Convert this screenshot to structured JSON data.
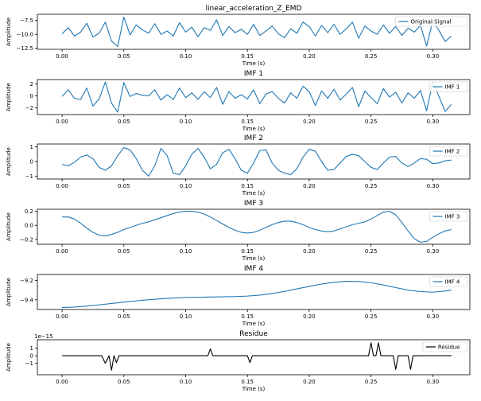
{
  "chart_data": [
    {
      "type": "line",
      "title": "linear_acceleration_Z_EMD",
      "xlabel": "Time (s)",
      "ylabel": "Amplitude",
      "legend": "Original Signal",
      "legend_position": "top-right",
      "color": "#1f77b4",
      "xlim": [
        -0.02,
        0.33
      ],
      "ylim": [
        -12.7,
        -6.4
      ],
      "yticks": [
        -12.5,
        -10.0,
        -7.5
      ],
      "ytick_labels": [
        "−12.5",
        "−10.0",
        "−7.5"
      ],
      "xticks": [
        0.0,
        0.05,
        0.1,
        0.15,
        0.2,
        0.25,
        0.3
      ],
      "xtick_labels": [
        "0.00",
        "0.05",
        "0.10",
        "0.15",
        "0.20",
        "0.25",
        "0.30"
      ],
      "x": [
        0.0,
        0.005,
        0.01,
        0.015,
        0.02,
        0.025,
        0.03,
        0.035,
        0.04,
        0.045,
        0.05,
        0.055,
        0.06,
        0.065,
        0.07,
        0.075,
        0.08,
        0.085,
        0.09,
        0.095,
        0.1,
        0.105,
        0.11,
        0.115,
        0.12,
        0.125,
        0.13,
        0.135,
        0.14,
        0.145,
        0.15,
        0.155,
        0.16,
        0.165,
        0.17,
        0.175,
        0.18,
        0.185,
        0.19,
        0.195,
        0.2,
        0.205,
        0.21,
        0.215,
        0.22,
        0.225,
        0.23,
        0.235,
        0.24,
        0.245,
        0.25,
        0.255,
        0.26,
        0.265,
        0.27,
        0.275,
        0.28,
        0.285,
        0.29,
        0.295,
        0.3,
        0.305,
        0.31,
        0.315
      ],
      "y": [
        -9.9,
        -8.8,
        -10.3,
        -9.6,
        -8.0,
        -10.5,
        -9.8,
        -7.8,
        -11.2,
        -12.2,
        -6.9,
        -10.1,
        -8.3,
        -9.2,
        -9.8,
        -8.1,
        -10.0,
        -9.4,
        -10.3,
        -7.9,
        -9.6,
        -8.7,
        -10.4,
        -8.8,
        -9.3,
        -7.4,
        -10.2,
        -8.6,
        -9.7,
        -9.1,
        -10.0,
        -8.2,
        -10.2,
        -9.4,
        -8.5,
        -9.9,
        -10.6,
        -9.0,
        -9.8,
        -7.8,
        -8.6,
        -10.3,
        -8.4,
        -9.7,
        -8.2,
        -10.0,
        -9.0,
        -7.8,
        -10.7,
        -8.5,
        -9.4,
        -10.0,
        -8.3,
        -9.8,
        -8.6,
        -10.2,
        -8.9,
        -9.6,
        -8.4,
        -12.1,
        -7.6,
        -9.3,
        -11.3,
        -10.3
      ]
    },
    {
      "type": "line",
      "title": "IMF 1",
      "xlabel": "Time (s)",
      "ylabel": "Amplitude",
      "legend": "IMF 1",
      "legend_position": "top-right",
      "color": "#1f77b4",
      "xlim": [
        -0.02,
        0.33
      ],
      "ylim": [
        -3.1,
        2.7
      ],
      "yticks": [
        -2,
        0,
        2
      ],
      "ytick_labels": [
        "−2",
        "0",
        "2"
      ],
      "xticks": [
        0.0,
        0.05,
        0.1,
        0.15,
        0.2,
        0.25,
        0.3
      ],
      "xtick_labels": [
        "0.00",
        "0.05",
        "0.10",
        "0.15",
        "0.20",
        "0.25",
        "0.30"
      ],
      "x": [
        0.0,
        0.005,
        0.01,
        0.015,
        0.02,
        0.025,
        0.03,
        0.035,
        0.04,
        0.045,
        0.05,
        0.055,
        0.06,
        0.065,
        0.07,
        0.075,
        0.08,
        0.085,
        0.09,
        0.095,
        0.1,
        0.105,
        0.11,
        0.115,
        0.12,
        0.125,
        0.13,
        0.135,
        0.14,
        0.145,
        0.15,
        0.155,
        0.16,
        0.165,
        0.17,
        0.175,
        0.18,
        0.185,
        0.19,
        0.195,
        0.2,
        0.205,
        0.21,
        0.215,
        0.22,
        0.225,
        0.23,
        0.235,
        0.24,
        0.245,
        0.25,
        0.255,
        0.26,
        0.265,
        0.27,
        0.275,
        0.28,
        0.285,
        0.29,
        0.295,
        0.3,
        0.305,
        0.31,
        0.315
      ],
      "y": [
        -0.1,
        1.0,
        -0.4,
        -0.6,
        1.3,
        -1.7,
        -0.5,
        2.3,
        -1.2,
        -2.7,
        2.2,
        -0.1,
        0.4,
        0.1,
        0.0,
        1.0,
        -0.7,
        0.2,
        -0.6,
        1.3,
        -0.3,
        0.5,
        -0.6,
        0.7,
        -0.3,
        1.4,
        -1.4,
        0.7,
        -0.4,
        0.2,
        -0.5,
        1.0,
        -1.3,
        0.3,
        0.7,
        -0.4,
        -1.2,
        0.5,
        -0.4,
        1.6,
        0.7,
        -1.6,
        0.8,
        -0.4,
        1.1,
        -0.7,
        0.3,
        1.4,
        -1.8,
        0.8,
        -0.3,
        -1.3,
        1.2,
        -0.2,
        0.6,
        -1.2,
        0.5,
        -0.4,
        0.9,
        -2.5,
        2.3,
        -0.1,
        -2.6,
        -1.4
      ]
    },
    {
      "type": "line",
      "title": "IMF 2",
      "xlabel": "Time (s)",
      "ylabel": "Amplitude",
      "legend": "IMF 2",
      "legend_position": "top-right",
      "color": "#1f77b4",
      "xlim": [
        -0.02,
        0.33
      ],
      "ylim": [
        -1.2,
        1.2
      ],
      "yticks": [
        -1,
        0,
        1
      ],
      "ytick_labels": [
        "−1",
        "0",
        "1"
      ],
      "xticks": [
        0.0,
        0.05,
        0.1,
        0.15,
        0.2,
        0.25,
        0.3
      ],
      "xtick_labels": [
        "0.00",
        "0.05",
        "0.10",
        "0.15",
        "0.20",
        "0.25",
        "0.30"
      ],
      "x": [
        0.0,
        0.005,
        0.01,
        0.015,
        0.02,
        0.025,
        0.03,
        0.035,
        0.04,
        0.045,
        0.05,
        0.055,
        0.06,
        0.065,
        0.07,
        0.075,
        0.08,
        0.085,
        0.09,
        0.095,
        0.1,
        0.105,
        0.11,
        0.115,
        0.12,
        0.125,
        0.13,
        0.135,
        0.14,
        0.145,
        0.15,
        0.155,
        0.16,
        0.165,
        0.17,
        0.175,
        0.18,
        0.185,
        0.19,
        0.195,
        0.2,
        0.205,
        0.21,
        0.215,
        0.22,
        0.225,
        0.23,
        0.235,
        0.24,
        0.245,
        0.25,
        0.255,
        0.26,
        0.265,
        0.27,
        0.275,
        0.28,
        0.285,
        0.29,
        0.295,
        0.3,
        0.305,
        0.31,
        0.315
      ],
      "y": [
        -0.2,
        -0.3,
        -0.05,
        0.3,
        0.45,
        0.2,
        -0.4,
        -0.6,
        -0.3,
        0.4,
        0.95,
        0.8,
        0.2,
        -0.6,
        -1.0,
        -0.3,
        0.9,
        0.4,
        -0.8,
        -0.9,
        -0.3,
        0.5,
        0.9,
        0.3,
        -0.5,
        -0.2,
        0.6,
        0.85,
        0.2,
        -0.6,
        -0.8,
        -0.1,
        0.75,
        0.8,
        -0.1,
        -0.6,
        -0.8,
        -0.9,
        -0.5,
        0.3,
        0.85,
        0.7,
        0.0,
        -0.6,
        -0.55,
        -0.1,
        0.35,
        0.5,
        0.4,
        0.0,
        -0.4,
        -0.55,
        -0.1,
        0.3,
        0.35,
        -0.1,
        -0.35,
        -0.1,
        0.2,
        0.15,
        -0.15,
        -0.1,
        0.05,
        0.1
      ]
    },
    {
      "type": "line",
      "title": "IMF 3",
      "xlabel": "Time (s)",
      "ylabel": "Amplitude",
      "legend": "IMF 3",
      "legend_position": "top-right",
      "color": "#1f77b4",
      "xlim": [
        -0.02,
        0.33
      ],
      "ylim": [
        -0.27,
        0.23
      ],
      "yticks": [
        -0.2,
        0.0,
        0.2
      ],
      "ytick_labels": [
        "−0.2",
        "0.0",
        "0.2"
      ],
      "xticks": [
        0.0,
        0.05,
        0.1,
        0.15,
        0.2,
        0.25,
        0.3
      ],
      "xtick_labels": [
        "0.00",
        "0.05",
        "0.10",
        "0.15",
        "0.20",
        "0.25",
        "0.30"
      ],
      "x": [
        0.0,
        0.005,
        0.01,
        0.015,
        0.02,
        0.025,
        0.03,
        0.035,
        0.04,
        0.045,
        0.05,
        0.055,
        0.06,
        0.065,
        0.07,
        0.075,
        0.08,
        0.085,
        0.09,
        0.095,
        0.1,
        0.105,
        0.11,
        0.115,
        0.12,
        0.125,
        0.13,
        0.135,
        0.14,
        0.145,
        0.15,
        0.155,
        0.16,
        0.165,
        0.17,
        0.175,
        0.18,
        0.185,
        0.19,
        0.195,
        0.2,
        0.205,
        0.21,
        0.215,
        0.22,
        0.225,
        0.23,
        0.235,
        0.24,
        0.245,
        0.25,
        0.255,
        0.26,
        0.265,
        0.27,
        0.275,
        0.28,
        0.285,
        0.29,
        0.295,
        0.3,
        0.305,
        0.31,
        0.315
      ],
      "y": [
        0.12,
        0.12,
        0.09,
        0.03,
        -0.04,
        -0.1,
        -0.14,
        -0.15,
        -0.13,
        -0.1,
        -0.06,
        -0.03,
        0.0,
        0.03,
        0.05,
        0.08,
        0.11,
        0.14,
        0.17,
        0.19,
        0.2,
        0.2,
        0.19,
        0.16,
        0.12,
        0.07,
        0.02,
        -0.03,
        -0.07,
        -0.1,
        -0.11,
        -0.1,
        -0.07,
        -0.03,
        0.01,
        0.04,
        0.06,
        0.06,
        0.04,
        0.01,
        -0.03,
        -0.06,
        -0.08,
        -0.09,
        -0.08,
        -0.05,
        -0.02,
        0.01,
        0.03,
        0.05,
        0.09,
        0.14,
        0.19,
        0.2,
        0.15,
        0.04,
        -0.08,
        -0.19,
        -0.24,
        -0.23,
        -0.17,
        -0.12,
        -0.08,
        -0.06
      ]
    },
    {
      "type": "line",
      "title": "IMF 4",
      "xlabel": "Time (s)",
      "ylabel": "Amplitude",
      "legend": "IMF 4",
      "legend_position": "top-right",
      "color": "#1f77b4",
      "xlim": [
        -0.02,
        0.33
      ],
      "ylim": [
        -9.5,
        -9.14
      ],
      "yticks": [
        -9.4,
        -9.2
      ],
      "ytick_labels": [
        "−9.4",
        "−9.2"
      ],
      "xticks": [
        0.0,
        0.05,
        0.1,
        0.15,
        0.2,
        0.25,
        0.3
      ],
      "xtick_labels": [
        "0.00",
        "0.05",
        "0.10",
        "0.15",
        "0.20",
        "0.25",
        "0.30"
      ],
      "x": [
        0.0,
        0.01,
        0.02,
        0.03,
        0.04,
        0.05,
        0.06,
        0.07,
        0.08,
        0.09,
        0.1,
        0.11,
        0.12,
        0.13,
        0.14,
        0.15,
        0.16,
        0.17,
        0.18,
        0.19,
        0.2,
        0.21,
        0.22,
        0.23,
        0.24,
        0.25,
        0.26,
        0.27,
        0.28,
        0.29,
        0.3,
        0.31,
        0.315
      ],
      "y": [
        -9.48,
        -9.475,
        -9.465,
        -9.452,
        -9.438,
        -9.424,
        -9.411,
        -9.399,
        -9.39,
        -9.382,
        -9.377,
        -9.374,
        -9.372,
        -9.37,
        -9.367,
        -9.362,
        -9.352,
        -9.336,
        -9.314,
        -9.288,
        -9.262,
        -9.238,
        -9.22,
        -9.21,
        -9.212,
        -9.225,
        -9.248,
        -9.275,
        -9.3,
        -9.316,
        -9.322,
        -9.31,
        -9.3
      ]
    },
    {
      "type": "line",
      "title": "Residue",
      "xlabel": "Time (s)",
      "ylabel": "Amplitude",
      "legend": "Residue",
      "legend_position": "top-right",
      "color": "#000000",
      "xlim": [
        -0.02,
        0.33
      ],
      "ylim": [
        -2.5,
        2.1
      ],
      "yticks": [
        -1,
        0,
        1
      ],
      "ytick_labels": [
        "−1",
        "0",
        "1"
      ],
      "offset_text": "1e−15",
      "xticks": [
        0.0,
        0.05,
        0.1,
        0.15,
        0.2,
        0.25,
        0.3
      ],
      "xtick_labels": [
        "0.00",
        "0.05",
        "0.10",
        "0.15",
        "0.20",
        "0.25",
        "0.30"
      ],
      "x": [
        0.0,
        0.032,
        0.035,
        0.038,
        0.04,
        0.042,
        0.044,
        0.046,
        0.048,
        0.118,
        0.12,
        0.122,
        0.15,
        0.152,
        0.154,
        0.248,
        0.25,
        0.252,
        0.254,
        0.256,
        0.258,
        0.26,
        0.268,
        0.27,
        0.272,
        0.274,
        0.28,
        0.282,
        0.284,
        0.315
      ],
      "y": [
        0,
        0,
        -1.0,
        0,
        -1.9,
        0,
        -0.9,
        0,
        0,
        0,
        0.9,
        0,
        0,
        -0.9,
        0,
        0,
        1.7,
        0,
        0,
        1.7,
        0,
        0,
        0,
        -1.8,
        0,
        0,
        0,
        -1.8,
        0,
        0
      ]
    }
  ]
}
